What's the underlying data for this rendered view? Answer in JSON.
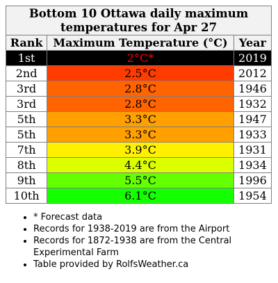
{
  "title": "Bottom 10 Ottawa daily maximum temperatures for Apr 27",
  "headers": {
    "rank": "Rank",
    "temp": "Maximum Temperature (°C)",
    "year": "Year"
  },
  "rows": [
    {
      "rank": "1st",
      "temp": "2°C*",
      "year": "2019",
      "color": "#000000"
    },
    {
      "rank": "2nd",
      "temp": "2.5°C",
      "year": "2012",
      "color": "#ff3c00"
    },
    {
      "rank": "3rd",
      "temp": "2.8°C",
      "year": "1946",
      "color": "#ff6400"
    },
    {
      "rank": "3rd",
      "temp": "2.8°C",
      "year": "1932",
      "color": "#ff6400"
    },
    {
      "rank": "5th",
      "temp": "3.3°C",
      "year": "1947",
      "color": "#ffa000"
    },
    {
      "rank": "5th",
      "temp": "3.3°C",
      "year": "1933",
      "color": "#ffa000"
    },
    {
      "rank": "7th",
      "temp": "3.9°C",
      "year": "1931",
      "color": "#fff000"
    },
    {
      "rank": "8th",
      "temp": "4.4°C",
      "year": "1934",
      "color": "#dcff00"
    },
    {
      "rank": "9th",
      "temp": "5.5°C",
      "year": "1996",
      "color": "#64ff00"
    },
    {
      "rank": "10th",
      "temp": "6.1°C",
      "year": "1954",
      "color": "#14ff00"
    }
  ],
  "notes": [
    "* Forecast data",
    "Records for 1938-2019 are from the Airport",
    "Records for 1872-1938 are from the Central Experimental Farm",
    "Table provided by RolfsWeather.ca"
  ]
}
